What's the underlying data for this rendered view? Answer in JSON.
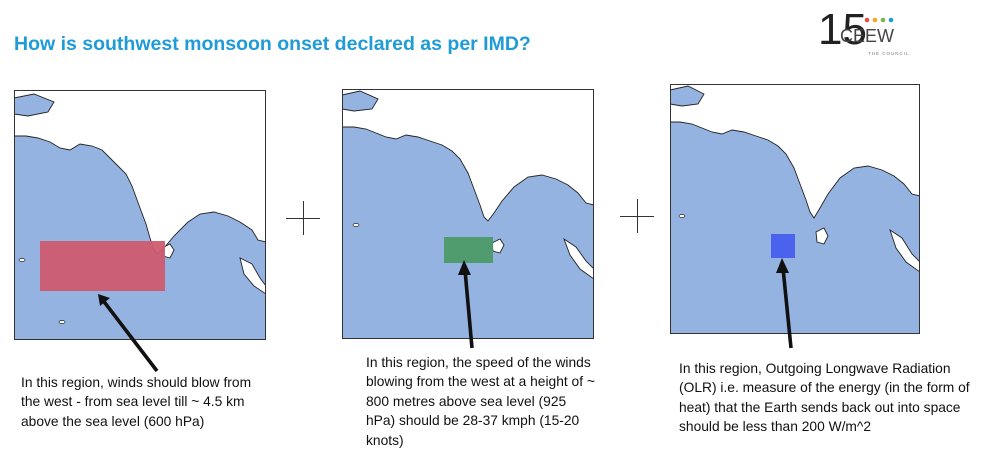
{
  "title": "How is southwest monsoon onset declared as per IMD?",
  "logo": {
    "number": "15",
    "brand": "CEEW",
    "tagline": "THE COUNCIL",
    "dot_colors": [
      "#e94e3d",
      "#f5a623",
      "#7ab648",
      "#1f9bd7"
    ]
  },
  "plus_symbol": "+",
  "colors": {
    "ocean": "#95b3e1",
    "land": "#ffffff",
    "box1": "#cd5b6f",
    "box2": "#4c9b67",
    "box3": "#4a62ee"
  },
  "panels": [
    {
      "caption": "In this region, winds should blow from the west - from sea level till ~ 4.5 km above the sea level (600 hPa)"
    },
    {
      "caption": "In this region, the speed of the winds blowing from the west at a height of ~ 800 metres above sea level (925 hPa) should be 28-37 kmph (15-20 knots)"
    },
    {
      "caption": "In this region, Outgoing Longwave Radiation (OLR) i.e. measure of the energy (in the form of heat) that the Earth sends back out into space should be less than 200 W/m^2"
    }
  ]
}
